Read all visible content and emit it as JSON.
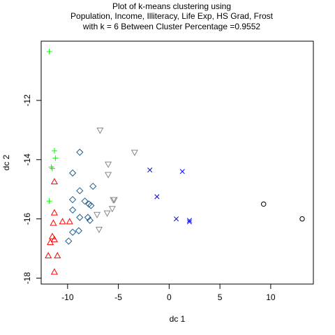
{
  "chart_data": {
    "type": "scatter",
    "title_lines": [
      "Plot of k-means clustering using",
      "Population, Income, Illiteracy, Life Exp, HS Grad, Frost",
      "with  k = 6 Between Cluster Percentage =0.9552"
    ],
    "xlabel": "dc 1",
    "ylabel": "dc 2",
    "xlim": [
      -12.6,
      14.2
    ],
    "ylim": [
      -18.2,
      -10.0
    ],
    "xticks": [
      -10,
      -5,
      0,
      5,
      10
    ],
    "yticks": [
      -18,
      -16,
      -14,
      -12
    ],
    "xtick_labels": [
      "-10",
      "-5",
      "0",
      "5",
      "10"
    ],
    "ytick_labels": [
      "-18",
      "-16",
      "-14",
      "-12"
    ],
    "grid": false,
    "legend": "none",
    "series": [
      {
        "marker": "plus",
        "color": "#00ff00",
        "points": [
          [
            -11.8,
            -10.35
          ],
          [
            -11.3,
            -13.7
          ],
          [
            -11.2,
            -13.95
          ],
          [
            -11.6,
            -14.25
          ],
          [
            -11.5,
            -14.3
          ],
          [
            -11.8,
            -15.4
          ]
        ]
      },
      {
        "marker": "triangle-up",
        "color": "#ff0000",
        "points": [
          [
            -11.3,
            -14.75
          ],
          [
            -11.3,
            -15.8
          ],
          [
            -11.4,
            -16.15
          ],
          [
            -10.5,
            -16.1
          ],
          [
            -9.8,
            -16.1
          ],
          [
            -11.3,
            -16.7
          ],
          [
            -11.5,
            -16.6
          ],
          [
            -11.7,
            -16.8
          ],
          [
            -11.9,
            -17.25
          ],
          [
            -11.0,
            -17.25
          ],
          [
            -11.3,
            -17.8
          ]
        ]
      },
      {
        "marker": "diamond",
        "color": "#1f5f8b",
        "points": [
          [
            -8.8,
            -13.75
          ],
          [
            -9.5,
            -14.45
          ],
          [
            -7.5,
            -14.9
          ],
          [
            -8.8,
            -15.05
          ],
          [
            -9.5,
            -15.35
          ],
          [
            -8.3,
            -15.4
          ],
          [
            -7.9,
            -15.5
          ],
          [
            -7.7,
            -15.55
          ],
          [
            -9.5,
            -15.7
          ],
          [
            -8.8,
            -15.95
          ],
          [
            -8.0,
            -15.95
          ],
          [
            -7.8,
            -16.05
          ],
          [
            -8.9,
            -16.4
          ],
          [
            -9.5,
            -16.45
          ],
          [
            -9.9,
            -16.75
          ]
        ]
      },
      {
        "marker": "triangle-down",
        "color": "#888888",
        "points": [
          [
            -6.8,
            -13.0
          ],
          [
            -3.4,
            -13.75
          ],
          [
            -6.0,
            -14.15
          ],
          [
            -6.0,
            -14.5
          ],
          [
            -5.4,
            -15.35
          ],
          [
            -5.5,
            -15.35
          ],
          [
            -5.6,
            -15.65
          ],
          [
            -6.1,
            -15.8
          ],
          [
            -7.1,
            -15.85
          ],
          [
            -6.9,
            -16.35
          ]
        ]
      },
      {
        "marker": "cross",
        "color": "#0000ee",
        "points": [
          [
            -1.9,
            -14.35
          ],
          [
            1.3,
            -14.4
          ],
          [
            -1.2,
            -15.25
          ],
          [
            0.7,
            -16.0
          ],
          [
            2.0,
            -16.05
          ],
          [
            2.0,
            -16.1
          ]
        ]
      },
      {
        "marker": "circle",
        "color": "#000000",
        "points": [
          [
            9.3,
            -15.5
          ],
          [
            13.1,
            -16.0
          ]
        ]
      }
    ]
  }
}
